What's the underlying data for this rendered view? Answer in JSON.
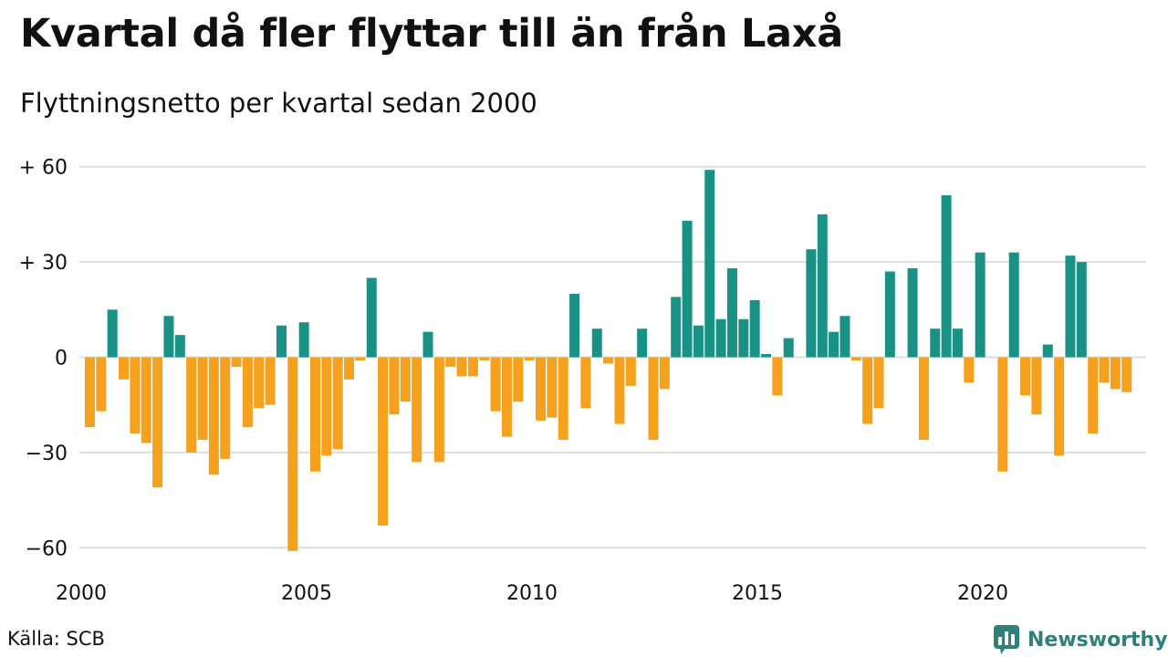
{
  "header": {
    "title": "Kvartal då fler flyttar till än från Laxå",
    "subtitle": "Flyttningsnetto per kvartal sedan 2000"
  },
  "footer": {
    "source": "Källa: SCB",
    "brand": "Newsworthy",
    "brand_icon": "bar-chart-speech-bubble-icon"
  },
  "colors": {
    "positive": "#1a9185",
    "negative": "#f5a11d",
    "grid": "#dddddd",
    "brand": "#2f7f7a"
  },
  "chart_data": {
    "type": "bar",
    "xlabel": "",
    "ylabel": "",
    "ylim": [
      -64,
      62
    ],
    "yticks": [
      {
        "value": 60,
        "label": "+ 60"
      },
      {
        "value": 30,
        "label": "+ 30"
      },
      {
        "value": 0,
        "label": "0"
      },
      {
        "value": -30,
        "label": "−30"
      },
      {
        "value": -60,
        "label": "−60"
      }
    ],
    "xticks": [
      {
        "year": 2000,
        "label": "2000"
      },
      {
        "year": 2005,
        "label": "2005"
      },
      {
        "year": 2010,
        "label": "2010"
      },
      {
        "year": 2015,
        "label": "2015"
      },
      {
        "year": 2020,
        "label": "2020"
      }
    ],
    "start_year": 2000,
    "grid": true,
    "legend": "none",
    "values": [
      -22,
      -17,
      15,
      -7,
      -24,
      -27,
      -41,
      13,
      7,
      -30,
      -26,
      -37,
      -32,
      -3,
      -22,
      -16,
      -15,
      10,
      -61,
      11,
      -36,
      -31,
      -29,
      -7,
      -1,
      25,
      -53,
      -18,
      -14,
      -33,
      8,
      -33,
      -3,
      -6,
      -6,
      -1,
      -17,
      -25,
      -14,
      -1,
      -20,
      -19,
      -26,
      20,
      -16,
      9,
      -2,
      -21,
      -9,
      9,
      -26,
      -10,
      19,
      43,
      10,
      59,
      12,
      28,
      12,
      18,
      1,
      -12,
      6,
      0,
      34,
      45,
      8,
      13,
      -1,
      -21,
      -16,
      27,
      0,
      28,
      -26,
      9,
      51,
      9,
      -8,
      33,
      0,
      -36,
      33,
      -12,
      -18,
      4,
      -31,
      32,
      30,
      -24,
      -8,
      -10,
      -11
    ]
  }
}
